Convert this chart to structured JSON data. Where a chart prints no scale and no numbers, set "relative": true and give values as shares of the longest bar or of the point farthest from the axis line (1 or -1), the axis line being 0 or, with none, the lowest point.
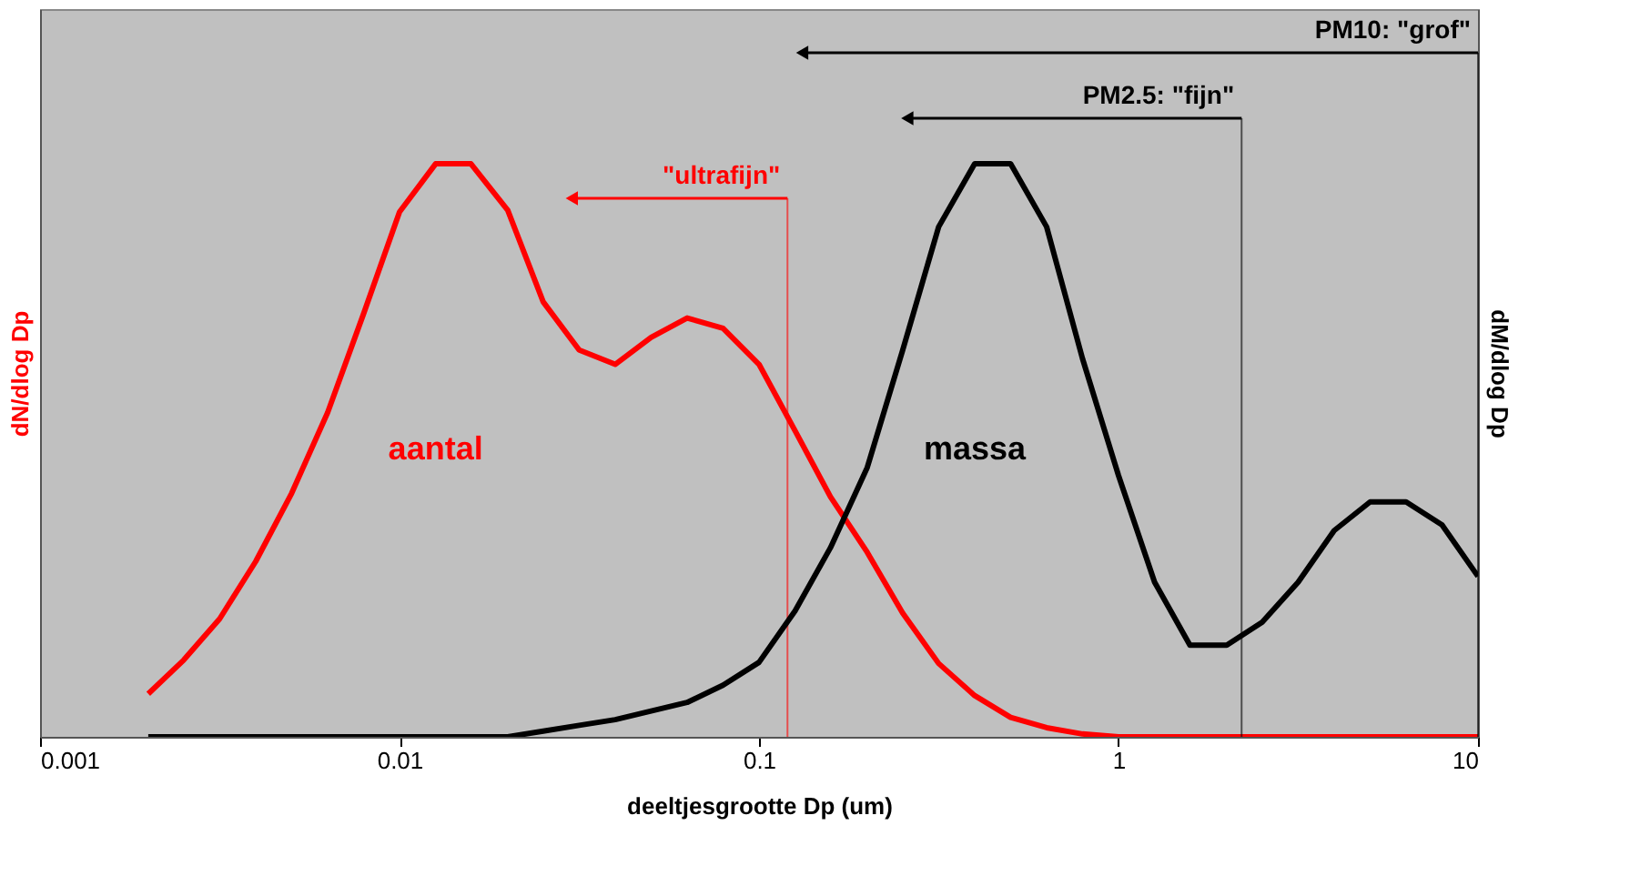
{
  "chart_data": {
    "type": "line",
    "relative": true,
    "log": "x",
    "xlabel": "deeltjesgrootte Dp (um)",
    "ylabel": "dN/dlog Dp",
    "y2label": "dM/dlog Dp",
    "xlim": [
      0.001,
      10
    ],
    "xticks": [
      0.001,
      0.01,
      0.1,
      1,
      10
    ],
    "grid": false,
    "marker": "none",
    "line_style": "solid",
    "x": [
      0.002,
      0.00251,
      0.00316,
      0.00398,
      0.00501,
      0.00631,
      0.00794,
      0.01,
      0.0126,
      0.0158,
      0.02,
      0.0251,
      0.0316,
      0.0398,
      0.0501,
      0.0631,
      0.0794,
      0.1,
      0.126,
      0.158,
      0.2,
      0.251,
      0.316,
      0.398,
      0.501,
      0.631,
      0.794,
      1,
      1.26,
      1.58,
      2,
      2.51,
      3.16,
      3.98,
      5.01,
      6.31,
      7.94,
      10
    ],
    "series": [
      {
        "name": "aantal",
        "color": "#ff0000",
        "values": [
          0.075,
          0.134,
          0.206,
          0.306,
          0.425,
          0.566,
          0.738,
          0.916,
          1,
          1,
          0.919,
          0.759,
          0.675,
          0.65,
          0.697,
          0.731,
          0.713,
          0.65,
          0.534,
          0.419,
          0.322,
          0.216,
          0.128,
          0.072,
          0.034,
          0.016,
          0.005,
          0,
          0,
          0,
          0,
          0,
          0,
          0,
          0,
          0,
          0,
          0
        ]
      },
      {
        "name": "massa",
        "color": "#000000",
        "axis": "y2",
        "values": [
          0,
          0,
          0,
          0,
          0,
          0,
          0,
          0,
          0,
          0,
          0,
          0.01,
          0.02,
          0.03,
          0.045,
          0.06,
          0.09,
          0.13,
          0.22,
          0.33,
          0.47,
          0.675,
          0.89,
          1,
          1,
          0.89,
          0.66,
          0.456,
          0.27,
          0.16,
          0.16,
          0.2,
          0.27,
          0.36,
          0.41,
          0.41,
          0.37,
          0.28
        ]
      }
    ],
    "ref_lines": [
      {
        "axis": "x",
        "value": 10,
        "label": "PM10: \"grof\"",
        "color": "#000000"
      },
      {
        "axis": "x",
        "value": 2.2,
        "label": "PM2.5: \"fijn\"",
        "color": "#000000"
      },
      {
        "axis": "x",
        "value": 0.12,
        "label": "\"ultrafijn\"",
        "color": "#ff0000"
      }
    ]
  }
}
